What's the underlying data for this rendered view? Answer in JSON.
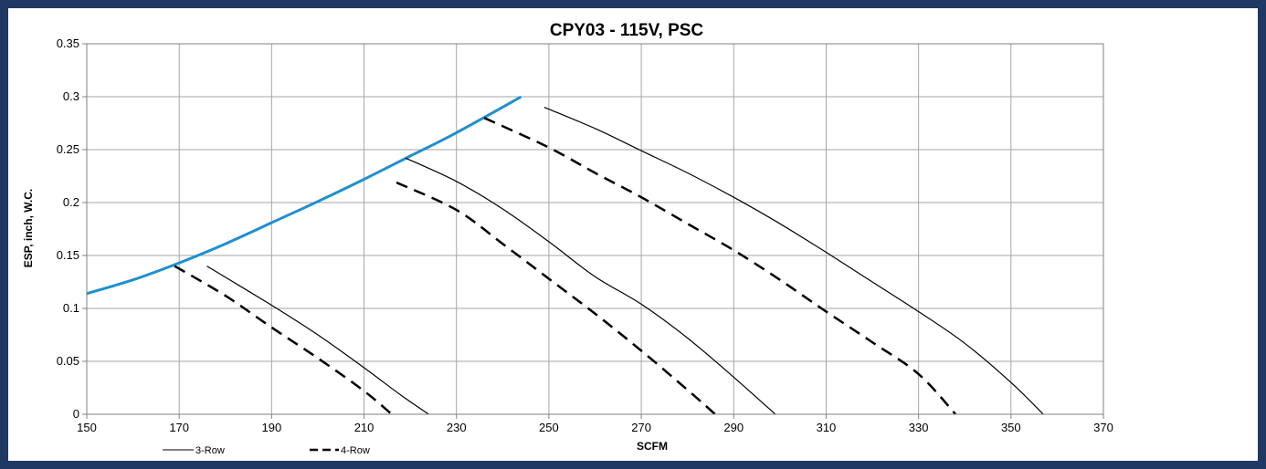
{
  "chart_data": {
    "type": "line",
    "title": "CPY03 - 115V, PSC",
    "xlabel": "SCFM",
    "ylabel": "ESP, inch, W.C.",
    "xlim": [
      150,
      370
    ],
    "ylim": [
      0,
      0.35
    ],
    "x_ticks": [
      "150",
      "170",
      "190",
      "210",
      "230",
      "250",
      "270",
      "290",
      "310",
      "330",
      "350",
      "370"
    ],
    "y_ticks": [
      "0",
      "0.05",
      "0.1",
      "0.15",
      "0.2",
      "0.25",
      "0.3",
      "0.35"
    ],
    "grid": true,
    "legend_position": "bottom-left",
    "colors": {
      "frame": "#1f3864",
      "limit_curve": "#1f8fcf",
      "series": "#000000",
      "grid": "#a6a6a6"
    },
    "series": [
      {
        "name": "",
        "style": "solid",
        "color": "#1f8fcf",
        "points": [
          [
            150,
            0.114
          ],
          [
            160,
            0.127
          ],
          [
            170,
            0.143
          ],
          [
            180,
            0.161
          ],
          [
            190,
            0.181
          ],
          [
            200,
            0.201
          ],
          [
            210,
            0.222
          ],
          [
            220,
            0.244
          ],
          [
            230,
            0.266
          ],
          [
            244,
            0.3
          ]
        ]
      },
      {
        "name": "3-Row",
        "style": "solid",
        "color": "#000000",
        "points": [
          [
            176,
            0.14
          ],
          [
            190,
            0.103
          ],
          [
            200,
            0.075
          ],
          [
            210,
            0.044
          ],
          [
            218,
            0.018
          ],
          [
            224,
            0.0
          ]
        ]
      },
      {
        "name": "4-Row",
        "style": "dashed",
        "color": "#000000",
        "points": [
          [
            169,
            0.14
          ],
          [
            180,
            0.112
          ],
          [
            190,
            0.082
          ],
          [
            200,
            0.053
          ],
          [
            210,
            0.022
          ],
          [
            216,
            0.0
          ]
        ]
      },
      {
        "name": "3-Row",
        "style": "solid",
        "color": "#000000",
        "points": [
          [
            219,
            0.242
          ],
          [
            230,
            0.22
          ],
          [
            240,
            0.194
          ],
          [
            250,
            0.163
          ],
          [
            260,
            0.13
          ],
          [
            270,
            0.104
          ],
          [
            280,
            0.072
          ],
          [
            290,
            0.035
          ],
          [
            299,
            0.0
          ]
        ]
      },
      {
        "name": "4-Row",
        "style": "dashed",
        "color": "#000000",
        "points": [
          [
            217,
            0.219
          ],
          [
            230,
            0.193
          ],
          [
            240,
            0.161
          ],
          [
            250,
            0.128
          ],
          [
            260,
            0.095
          ],
          [
            270,
            0.06
          ],
          [
            280,
            0.023
          ],
          [
            286,
            0.0
          ]
        ]
      },
      {
        "name": "3-Row",
        "style": "solid",
        "color": "#000000",
        "points": [
          [
            249,
            0.29
          ],
          [
            260,
            0.27
          ],
          [
            270,
            0.249
          ],
          [
            280,
            0.228
          ],
          [
            290,
            0.205
          ],
          [
            300,
            0.18
          ],
          [
            310,
            0.153
          ],
          [
            320,
            0.125
          ],
          [
            330,
            0.097
          ],
          [
            340,
            0.067
          ],
          [
            350,
            0.03
          ],
          [
            357,
            0.0
          ]
        ]
      },
      {
        "name": "4-Row",
        "style": "dashed",
        "color": "#000000",
        "points": [
          [
            236,
            0.28
          ],
          [
            250,
            0.252
          ],
          [
            260,
            0.228
          ],
          [
            270,
            0.205
          ],
          [
            280,
            0.18
          ],
          [
            290,
            0.155
          ],
          [
            300,
            0.127
          ],
          [
            310,
            0.097
          ],
          [
            320,
            0.068
          ],
          [
            330,
            0.038
          ],
          [
            338,
            0.0
          ]
        ]
      }
    ],
    "legend": [
      {
        "label": "3-Row",
        "style": "solid"
      },
      {
        "label": "4-Row",
        "style": "dashed"
      }
    ]
  }
}
